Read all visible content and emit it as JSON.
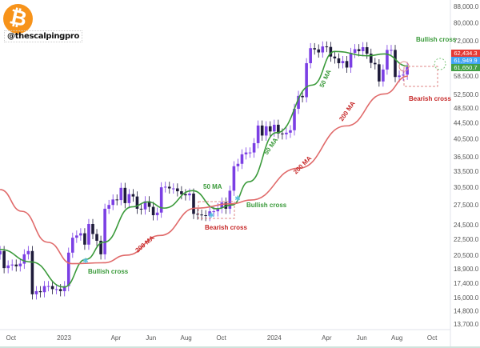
{
  "brand": {
    "handle": "@thescalpingpro",
    "logo_glyph": "₿",
    "logo_color": "#f7931a"
  },
  "chart_data": {
    "type": "candlestick",
    "title": "",
    "xlabel": "",
    "ylabel": "",
    "y_scale": "log",
    "ylim": [
      13000,
      92000
    ],
    "xlim": [
      "2022-09-12",
      "2024-10-31"
    ],
    "grid": false,
    "y_ticks": [
      "88,000.0",
      "80,000.0",
      "72,000.0",
      "58,500.0",
      "52,500.0",
      "48,500.0",
      "44,500.0",
      "40,500.0",
      "36,500.0",
      "33,500.0",
      "30,500.0",
      "27,500.0",
      "24,500.0",
      "22,500.0",
      "20,500.0",
      "18,900.0",
      "17,400.0",
      "16,000.0",
      "14,800.0",
      "13,700.0"
    ],
    "x_ticks": [
      {
        "label": "Oct",
        "date": "2022-10-01"
      },
      {
        "label": "2023",
        "date": "2023-01-01"
      },
      {
        "label": "Apr",
        "date": "2023-04-01"
      },
      {
        "label": "Jun",
        "date": "2023-06-01"
      },
      {
        "label": "Aug",
        "date": "2023-08-01"
      },
      {
        "label": "Oct",
        "date": "2023-10-01"
      },
      {
        "label": "2024",
        "date": "2024-01-01"
      },
      {
        "label": "Apr",
        "date": "2024-04-01"
      },
      {
        "label": "Jun",
        "date": "2024-06-01"
      },
      {
        "label": "Aug",
        "date": "2024-08-01"
      },
      {
        "label": "Oct",
        "date": "2024-10-01"
      }
    ],
    "price_weekly_close": [
      [
        "2022-09-12",
        21000
      ],
      [
        "2022-09-19",
        19000
      ],
      [
        "2022-09-26",
        19300
      ],
      [
        "2022-10-03",
        19400
      ],
      [
        "2022-10-10",
        19200
      ],
      [
        "2022-10-17",
        19500
      ],
      [
        "2022-10-24",
        20600
      ],
      [
        "2022-10-31",
        21000
      ],
      [
        "2022-11-07",
        16300
      ],
      [
        "2022-11-14",
        16600
      ],
      [
        "2022-11-21",
        16500
      ],
      [
        "2022-11-28",
        17100
      ],
      [
        "2022-12-05",
        17100
      ],
      [
        "2022-12-12",
        16800
      ],
      [
        "2022-12-19",
        16800
      ],
      [
        "2022-12-26",
        16600
      ],
      [
        "2023-01-02",
        17100
      ],
      [
        "2023-01-09",
        20800
      ],
      [
        "2023-01-16",
        22700
      ],
      [
        "2023-01-23",
        23000
      ],
      [
        "2023-01-30",
        23300
      ],
      [
        "2023-02-06",
        21800
      ],
      [
        "2023-02-13",
        24600
      ],
      [
        "2023-02-20",
        23200
      ],
      [
        "2023-02-27",
        22300
      ],
      [
        "2023-03-06",
        20600
      ],
      [
        "2023-03-13",
        26900
      ],
      [
        "2023-03-20",
        27500
      ],
      [
        "2023-03-27",
        28400
      ],
      [
        "2023-04-03",
        28300
      ],
      [
        "2023-04-10",
        30400
      ],
      [
        "2023-04-17",
        27800
      ],
      [
        "2023-04-24",
        29300
      ],
      [
        "2023-05-01",
        28900
      ],
      [
        "2023-05-08",
        26900
      ],
      [
        "2023-05-15",
        26800
      ],
      [
        "2023-05-22",
        28100
      ],
      [
        "2023-05-29",
        27200
      ],
      [
        "2023-06-05",
        25900
      ],
      [
        "2023-06-12",
        26300
      ],
      [
        "2023-06-19",
        30500
      ],
      [
        "2023-06-26",
        30600
      ],
      [
        "2023-07-03",
        30300
      ],
      [
        "2023-07-10",
        30300
      ],
      [
        "2023-07-17",
        29800
      ],
      [
        "2023-07-24",
        29300
      ],
      [
        "2023-07-31",
        29100
      ],
      [
        "2023-08-07",
        29400
      ],
      [
        "2023-08-14",
        26100
      ],
      [
        "2023-08-21",
        26000
      ],
      [
        "2023-08-28",
        25900
      ],
      [
        "2023-09-04",
        25800
      ],
      [
        "2023-09-11",
        26500
      ],
      [
        "2023-09-18",
        26500
      ],
      [
        "2023-09-25",
        27000
      ],
      [
        "2023-10-02",
        27900
      ],
      [
        "2023-10-09",
        26900
      ],
      [
        "2023-10-16",
        29900
      ],
      [
        "2023-10-23",
        34500
      ],
      [
        "2023-10-30",
        35000
      ],
      [
        "2023-11-06",
        37000
      ],
      [
        "2023-11-13",
        37400
      ],
      [
        "2023-11-20",
        37400
      ],
      [
        "2023-11-27",
        39500
      ],
      [
        "2023-12-04",
        43800
      ],
      [
        "2023-12-11",
        41300
      ],
      [
        "2023-12-18",
        43600
      ],
      [
        "2023-12-25",
        42300
      ],
      [
        "2024-01-01",
        44000
      ],
      [
        "2024-01-08",
        41800
      ],
      [
        "2024-01-15",
        41600
      ],
      [
        "2024-01-22",
        42000
      ],
      [
        "2024-01-29",
        42600
      ],
      [
        "2024-02-05",
        48300
      ],
      [
        "2024-02-12",
        52100
      ],
      [
        "2024-02-19",
        51700
      ],
      [
        "2024-02-26",
        63100
      ],
      [
        "2024-03-04",
        68900
      ],
      [
        "2024-03-11",
        68400
      ],
      [
        "2024-03-18",
        67200
      ],
      [
        "2024-03-25",
        69600
      ],
      [
        "2024-04-01",
        69400
      ],
      [
        "2024-04-08",
        65600
      ],
      [
        "2024-04-15",
        64900
      ],
      [
        "2024-04-22",
        63100
      ],
      [
        "2024-04-29",
        63900
      ],
      [
        "2024-05-06",
        61500
      ],
      [
        "2024-05-13",
        67000
      ],
      [
        "2024-05-20",
        68500
      ],
      [
        "2024-05-27",
        67700
      ],
      [
        "2024-06-03",
        69300
      ],
      [
        "2024-06-10",
        66700
      ],
      [
        "2024-06-17",
        63200
      ],
      [
        "2024-06-24",
        62700
      ],
      [
        "2024-07-01",
        56700
      ],
      [
        "2024-07-08",
        60800
      ],
      [
        "2024-07-15",
        68200
      ],
      [
        "2024-07-22",
        68200
      ],
      [
        "2024-07-29",
        58200
      ],
      [
        "2024-08-05",
        58700
      ],
      [
        "2024-08-12",
        59000
      ],
      [
        "2024-08-19",
        61650
      ]
    ],
    "series": [
      {
        "name": "50 MA",
        "color": "#3a9a3a",
        "points": [
          [
            "2022-09-12",
            21200
          ],
          [
            "2022-11-05",
            19700
          ],
          [
            "2023-01-01",
            17000
          ],
          [
            "2023-02-08",
            20000
          ],
          [
            "2023-03-11",
            22100
          ],
          [
            "2023-04-29",
            27200
          ],
          [
            "2023-05-27",
            28000
          ],
          [
            "2023-06-24",
            27000
          ],
          [
            "2023-08-12",
            29900
          ],
          [
            "2023-09-23",
            26900
          ],
          [
            "2023-10-20",
            27500
          ],
          [
            "2023-11-18",
            31500
          ],
          [
            "2024-01-05",
            42000
          ],
          [
            "2024-03-07",
            55500
          ],
          [
            "2024-04-15",
            67600
          ],
          [
            "2024-06-12",
            65900
          ],
          [
            "2024-07-10",
            66600
          ],
          [
            "2024-08-20",
            62000
          ]
        ]
      },
      {
        "name": "200 MA",
        "color": "#e06a6a",
        "points": [
          [
            "2022-09-12",
            30100
          ],
          [
            "2022-10-20",
            26500
          ],
          [
            "2022-12-04",
            22100
          ],
          [
            "2023-01-15",
            19500
          ],
          [
            "2023-03-11",
            19600
          ],
          [
            "2023-04-20",
            20500
          ],
          [
            "2023-06-17",
            23000
          ],
          [
            "2023-08-18",
            27000
          ],
          [
            "2023-10-20",
            27700
          ],
          [
            "2023-11-21",
            28300
          ],
          [
            "2024-02-12",
            34100
          ],
          [
            "2024-05-05",
            43700
          ],
          [
            "2024-07-10",
            52700
          ],
          [
            "2024-08-20",
            58500
          ]
        ]
      }
    ],
    "price_labels": [
      {
        "text": "62,434.3",
        "value": 62434.3,
        "color": "#e53935"
      },
      {
        "text": "61,949.9",
        "value": 61949.9,
        "color": "#42a5f5"
      },
      {
        "text": "61,650.7",
        "value": 61650.7,
        "color": "#43a047"
      }
    ],
    "annotations": {
      "bullish_cross_1": "Bullish cross",
      "bullish_cross_2": "Bullish cross",
      "bullish_cross_3": "Bullish cross",
      "bearish_cross_1": "Bearish cross",
      "bearish_cross_2": "Bearish cross",
      "ma50_label_1": "50 MA",
      "ma50_label_2": "50 MA",
      "ma50_label_3": "50 MA",
      "ma200_label_1": "200 MA",
      "ma200_label_2": "200 MA",
      "ma200_label_3": "200 MA"
    },
    "colors": {
      "up": "#7b3fe4",
      "down": "#1e1b3a",
      "bullish": "#3a9a3a",
      "bearish": "#c62828"
    }
  }
}
